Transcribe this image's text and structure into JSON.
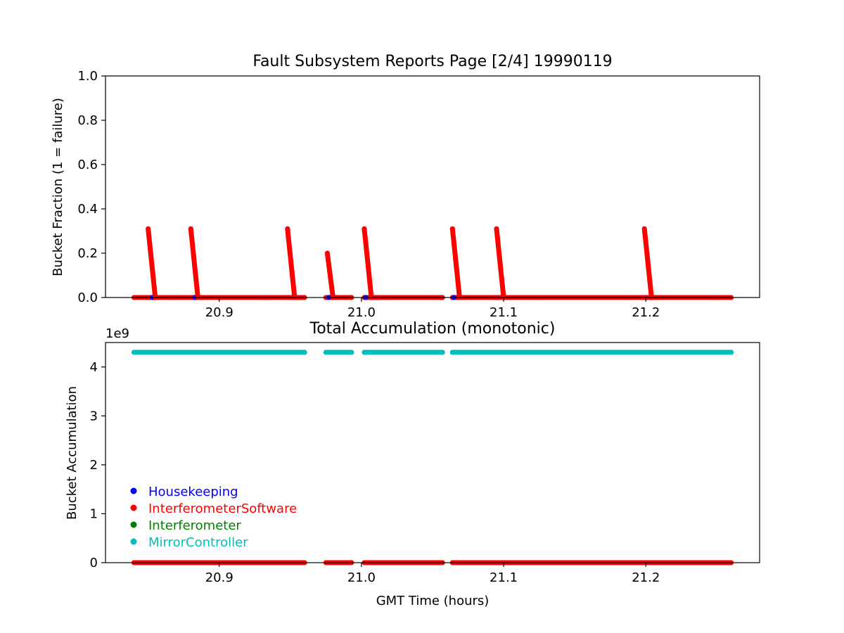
{
  "figure": {
    "background": "#ffffff",
    "series_colors": {
      "Housekeeping": "#0000ff",
      "InterferometerSoftware": "#ff0000",
      "Interferometer": "#008000",
      "MirrorController": "#00bfbf"
    }
  },
  "chart_data": [
    {
      "type": "scatter",
      "title": "Fault Subsystem Reports Page [2/4] 19990119",
      "xlabel": "",
      "ylabel": "Bucket Fraction (1 = failure)",
      "xlim": [
        20.82,
        21.28
      ],
      "ylim": [
        0.0,
        1.0
      ],
      "xticks": [
        20.9,
        21.0,
        21.1,
        21.2
      ],
      "xtick_labels": [
        "20.9",
        "21.0",
        "21.1",
        "21.2"
      ],
      "yticks": [
        0.0,
        0.2,
        0.4,
        0.6,
        0.8,
        1.0
      ],
      "ytick_labels": [
        "0.0",
        "0.2",
        "0.4",
        "0.6",
        "0.8",
        "1.0"
      ],
      "grid": false,
      "time_segments": [
        [
          20.84,
          20.96
        ],
        [
          20.975,
          20.993
        ],
        [
          21.002,
          21.057
        ],
        [
          21.064,
          21.26
        ]
      ],
      "series": [
        {
          "name": "Housekeeping",
          "color": "#0000ff",
          "markers": [
            {
              "x": 20.853,
              "y": 0.0
            },
            {
              "x": 20.883,
              "y": 0.0
            },
            {
              "x": 20.977,
              "y": 0.0
            },
            {
              "x": 21.003,
              "y": 0.0
            },
            {
              "x": 21.065,
              "y": 0.0
            }
          ]
        },
        {
          "name": "InterferometerSoftware",
          "color": "#ff0000",
          "baseline": 0.0,
          "spikes": [
            {
              "x_start": 20.85,
              "x_end": 20.855,
              "peak": 0.31
            },
            {
              "x_start": 20.88,
              "x_end": 20.885,
              "peak": 0.31
            },
            {
              "x_start": 20.948,
              "x_end": 20.953,
              "peak": 0.31
            },
            {
              "x_start": 20.976,
              "x_end": 20.98,
              "peak": 0.2
            },
            {
              "x_start": 21.002,
              "x_end": 21.007,
              "peak": 0.31
            },
            {
              "x_start": 21.064,
              "x_end": 21.069,
              "peak": 0.31
            },
            {
              "x_start": 21.095,
              "x_end": 21.1,
              "peak": 0.31
            },
            {
              "x_start": 21.199,
              "x_end": 21.204,
              "peak": 0.31
            }
          ]
        }
      ]
    },
    {
      "type": "scatter",
      "title": "Total Accumulation (monotonic)",
      "xlabel": "GMT Time (hours)",
      "ylabel": "Bucket Accumulation",
      "y_offset_label": "1e9",
      "xlim": [
        20.82,
        21.28
      ],
      "ylim": [
        0.0,
        4.5
      ],
      "xticks": [
        20.9,
        21.0,
        21.1,
        21.2
      ],
      "xtick_labels": [
        "20.9",
        "21.0",
        "21.1",
        "21.2"
      ],
      "yticks": [
        0,
        1,
        2,
        3,
        4
      ],
      "ytick_labels": [
        "0",
        "1",
        "2",
        "3",
        "4"
      ],
      "grid": false,
      "legend": {
        "placement": "lower-left",
        "entries": [
          {
            "label": "Housekeeping",
            "color": "#0000ff"
          },
          {
            "label": "InterferometerSoftware",
            "color": "#ff0000"
          },
          {
            "label": "Interferometer",
            "color": "#008000"
          },
          {
            "label": "MirrorController",
            "color": "#00bfbf"
          }
        ]
      },
      "series": [
        {
          "name": "MirrorController",
          "color": "#00bfbf",
          "y": 4.3,
          "segments": [
            [
              20.84,
              20.96
            ],
            [
              20.975,
              20.993
            ],
            [
              21.002,
              21.057
            ],
            [
              21.064,
              21.26
            ]
          ]
        },
        {
          "name": "InterferometerSoftware",
          "color": "#ff0000",
          "y": 0.0,
          "segments": [
            [
              20.84,
              20.96
            ],
            [
              20.975,
              20.993
            ],
            [
              21.002,
              21.057
            ],
            [
              21.064,
              21.26
            ]
          ]
        }
      ]
    }
  ]
}
